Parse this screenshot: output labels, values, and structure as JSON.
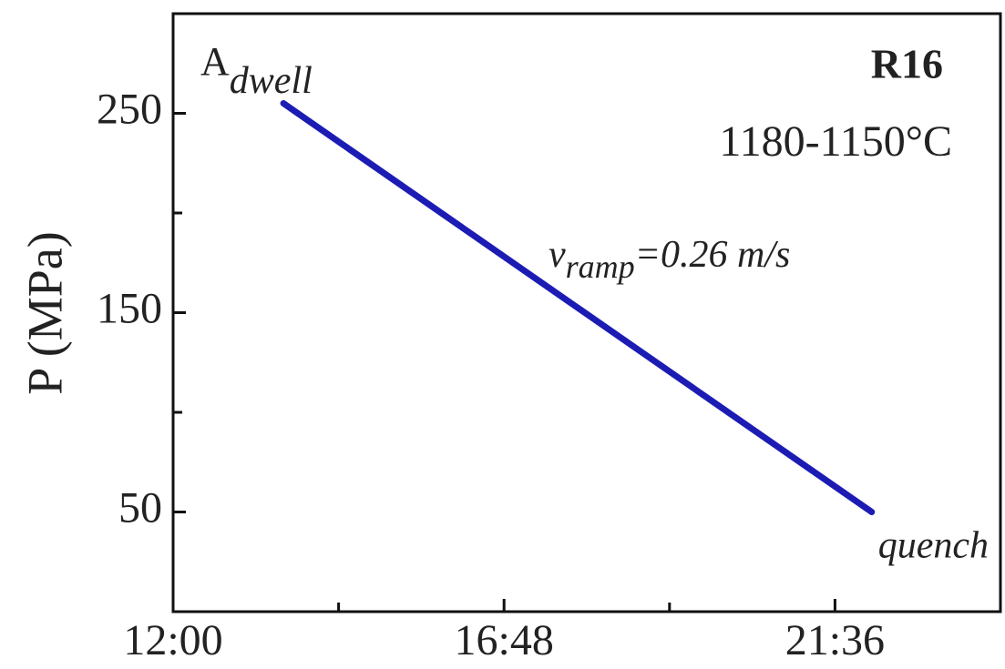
{
  "chart_data": {
    "type": "line",
    "title": "R16",
    "subtitle": "1180-1150°C",
    "y_label": "P (MPa)",
    "x": [
      816,
      1328
    ],
    "series": [
      {
        "values": [
          255,
          50
        ],
        "color": "#1c1cb4"
      }
    ],
    "xlim": [
      720,
      1440
    ],
    "xticks": [
      {
        "value": 720,
        "label": "12:00"
      },
      {
        "value": 1008,
        "label": "16:48"
      },
      {
        "value": 1296,
        "label": "21:36"
      }
    ],
    "xminor": [
      864,
      1152
    ],
    "ylim": [
      0,
      300
    ],
    "yticks": [
      50,
      150,
      250
    ],
    "yminor": [
      100,
      200
    ],
    "annotations": {
      "start": "A",
      "start_sub": "dwell",
      "rate": "v",
      "rate_sub": "ramp",
      "rate_value": "=0.26 m/s",
      "end": "quench"
    }
  }
}
